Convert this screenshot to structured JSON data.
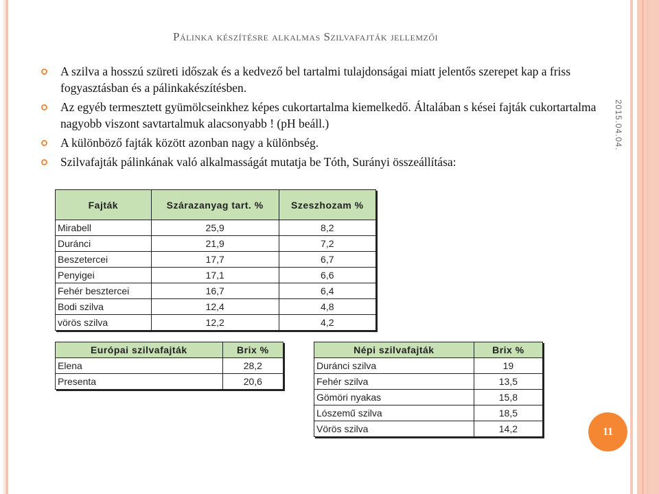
{
  "title": "Pálinka készítésre alkalmas Szilvafajták jellemzői",
  "bullets": [
    " A szilva a hosszú szüreti időszak és a kedvező bel tartalmi tulajdonságai miatt jelentős szerepet kap a friss fogyasztásban és a pálinkakészítésben.",
    "Az egyéb termesztett gyümölcseinkhez képes cukortartalma kiemelkedő. Általában s kései fajták cukortartalma nagyobb viszont savtartalmuk alacsonyabb ! (pH beáll.)",
    "A különböző fajták között azonban nagy a különbség.",
    "Szilvafajták pálinkának való alkalmasságát mutatja be Tóth, Surányi összeállítása:"
  ],
  "date": "2015.04.04.",
  "page_number": "11",
  "colors": {
    "accent": "#f58632",
    "table_header": "#c7e0b4",
    "stripe": "#f6c7b6"
  },
  "tables": {
    "t1": {
      "headers": [
        "Fajták",
        "Szárazanyag tart. %",
        "Szeszhozam %"
      ],
      "rows": [
        [
          "Mirabell",
          "25,9",
          "8,2"
        ],
        [
          "Duránci",
          "21,9",
          "7,2"
        ],
        [
          "Beszetercei",
          "17,7",
          "6,7"
        ],
        [
          "Penyigei",
          "17,1",
          "6,6"
        ],
        [
          "Fehér besztercei",
          "16,7",
          "6,4"
        ],
        [
          "Bodi szilva",
          "12,4",
          "4,8"
        ],
        [
          "vörös szilva",
          "12,2",
          "4,2"
        ]
      ]
    },
    "t2": {
      "headers": [
        "Európai szilvafajták",
        "Brix %"
      ],
      "rows": [
        [
          "Elena",
          "28,2"
        ],
        [
          "Presenta",
          "20,6"
        ]
      ]
    },
    "t3": {
      "headers": [
        "Népi szilvafajták",
        "Brix %"
      ],
      "rows": [
        [
          "Duránci szilva",
          "19"
        ],
        [
          "Fehér szilva",
          "13,5"
        ],
        [
          "Gömöri nyakas",
          "15,8"
        ],
        [
          "Lószemű szilva",
          "18,5"
        ],
        [
          "Vörös szilva",
          "14,2"
        ]
      ]
    }
  }
}
